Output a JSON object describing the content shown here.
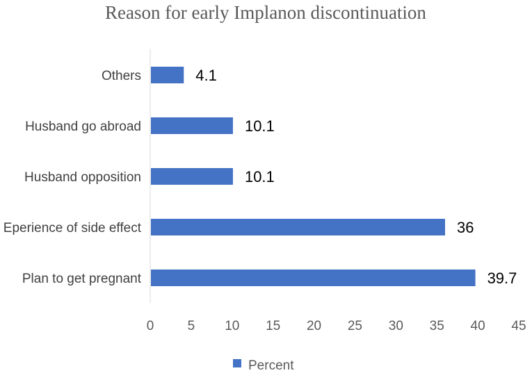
{
  "chart_data": {
    "type": "bar",
    "orientation": "horizontal",
    "title": "Reason for early Implanon  discontinuation",
    "categories": [
      "Plan to get pregnant",
      "Eperience of side effect",
      "Husband opposition",
      "Husband go abroad",
      "Others"
    ],
    "series": [
      {
        "name": "Percent",
        "values": [
          39.7,
          36,
          10.1,
          10.1,
          4.1
        ],
        "color": "#4472c4"
      }
    ],
    "data_labels": [
      "39.7",
      "36",
      "10.1",
      "10.1",
      "4.1"
    ],
    "xlim": [
      0,
      45
    ],
    "xticks": [
      0,
      5,
      10,
      15,
      20,
      25,
      30,
      35,
      40,
      45
    ],
    "xlabel": "",
    "ylabel": "",
    "grid": false,
    "legend": {
      "position": "bottom",
      "label": "Percent"
    }
  }
}
